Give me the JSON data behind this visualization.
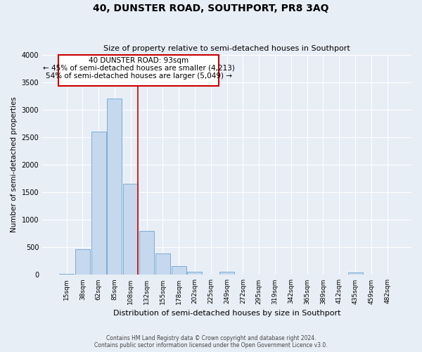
{
  "title": "40, DUNSTER ROAD, SOUTHPORT, PR8 3AQ",
  "subtitle": "Size of property relative to semi-detached houses in Southport",
  "xlabel": "Distribution of semi-detached houses by size in Southport",
  "ylabel": "Number of semi-detached properties",
  "footer_line1": "Contains HM Land Registry data © Crown copyright and database right 2024.",
  "footer_line2": "Contains public sector information licensed under the Open Government Licence v3.0.",
  "bins": [
    "15sqm",
    "38sqm",
    "62sqm",
    "85sqm",
    "108sqm",
    "132sqm",
    "155sqm",
    "178sqm",
    "202sqm",
    "225sqm",
    "249sqm",
    "272sqm",
    "295sqm",
    "319sqm",
    "342sqm",
    "365sqm",
    "389sqm",
    "412sqm",
    "435sqm",
    "459sqm",
    "482sqm"
  ],
  "bar_values": [
    20,
    460,
    2600,
    3200,
    1650,
    800,
    390,
    165,
    55,
    0,
    60,
    0,
    0,
    0,
    0,
    0,
    0,
    0,
    40,
    0,
    0
  ],
  "bar_color": "#c5d8ee",
  "bar_edge_color": "#7aadd4",
  "background_color": "#e8eef6",
  "grid_color": "#ffffff",
  "annotation_text_line1": "40 DUNSTER ROAD: 93sqm",
  "annotation_text_line2": "← 45% of semi-detached houses are smaller (4,213)",
  "annotation_text_line3": "54% of semi-detached houses are larger (5,049) →",
  "annotation_box_color": "#ffffff",
  "annotation_box_edge": "#cc0000",
  "ylim": [
    0,
    4000
  ],
  "yticks": [
    0,
    500,
    1000,
    1500,
    2000,
    2500,
    3000,
    3500,
    4000
  ],
  "red_line_color": "#cc0000",
  "red_line_x": 4.43,
  "figsize": [
    6.0,
    5.0
  ],
  "dpi": 100
}
